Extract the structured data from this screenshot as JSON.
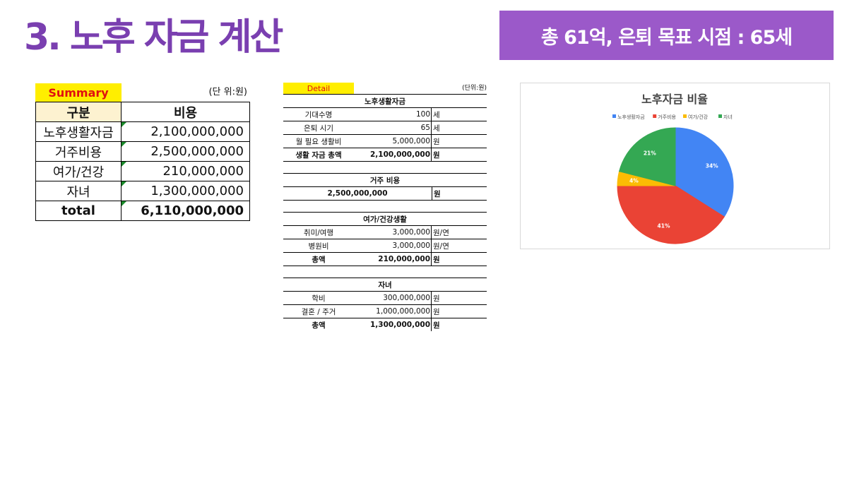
{
  "page": {
    "title": "3. 노후 자금 계산",
    "banner": "총 61억, 은퇴 목표 시점 : 65세"
  },
  "summary": {
    "label": "Summary",
    "unit": "(단 위:원)",
    "headers": [
      "구분",
      "비용"
    ],
    "rows": [
      {
        "item": "노후생활자금",
        "cost": "2,100,000,000"
      },
      {
        "item": "거주비용",
        "cost": "2,500,000,000"
      },
      {
        "item": "여가/건강",
        "cost": "210,000,000"
      },
      {
        "item": "자녀",
        "cost": "1,300,000,000"
      }
    ],
    "total": {
      "item": "total",
      "cost": "6,110,000,000"
    }
  },
  "detail": {
    "label": "Detail",
    "unit": "(단위:원)",
    "living": {
      "title": "노후생활자금",
      "rows": [
        {
          "a": "기대수명",
          "b": "100",
          "c": "세"
        },
        {
          "a": "은퇴 시기",
          "b": "65",
          "c": "세"
        },
        {
          "a": "월 필요 생활비",
          "b": "5,000,000",
          "c": "원"
        },
        {
          "a": "생활 자금 총액",
          "b": "2,100,000,000",
          "c": "원"
        }
      ]
    },
    "housing": {
      "title": "거주 비용",
      "value": "2,500,000,000",
      "unit": "원"
    },
    "leisure": {
      "title": "여가/건강생활",
      "rows": [
        {
          "a": "취미/여행",
          "b": "3,000,000",
          "c": "원/연"
        },
        {
          "a": "병원비",
          "b": "3,000,000",
          "c": "원/연"
        },
        {
          "a": "총액",
          "b": "210,000,000",
          "c": "원"
        }
      ]
    },
    "children": {
      "title": "자녀",
      "rows": [
        {
          "a": "학비",
          "b": "300,000,000",
          "c": "원"
        },
        {
          "a": "결혼 / 주거",
          "b": "1,000,000,000",
          "c": "원"
        },
        {
          "a": "총액",
          "b": "1,300,000,000",
          "c": "원"
        }
      ]
    }
  },
  "chart_data": {
    "type": "pie",
    "title": "노후자금 비율",
    "legend_position": "top",
    "categories": [
      "노후생활자금",
      "거주비용",
      "여가/건강",
      "자녀"
    ],
    "values": [
      34,
      41,
      4,
      21
    ],
    "labels": [
      "34%",
      "41%",
      "4%",
      "21%"
    ],
    "colors": [
      "#4285f4",
      "#ea4335",
      "#fbbc04",
      "#34a853"
    ]
  }
}
